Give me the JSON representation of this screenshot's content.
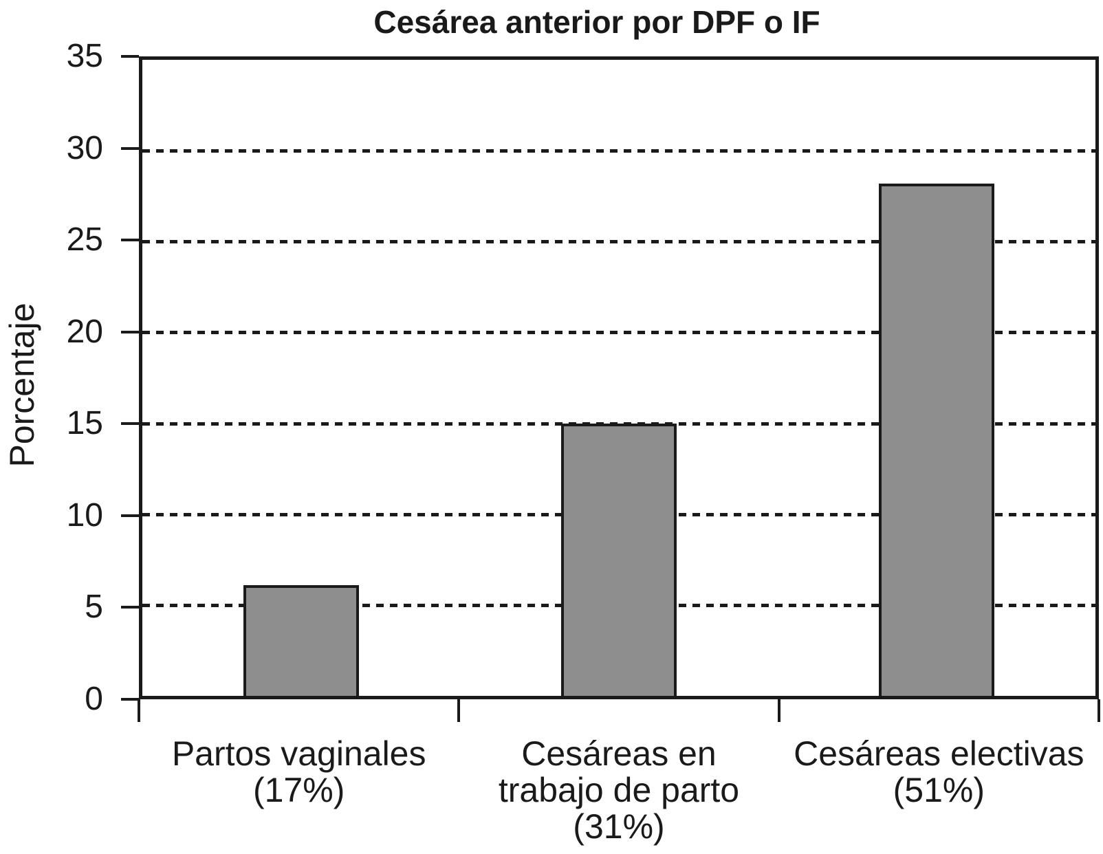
{
  "chart_data": {
    "type": "bar",
    "title": "Cesárea anterior por DPF o IF",
    "ylabel": "Porcentaje",
    "xlabel": "",
    "categories": [
      {
        "label": "Partos vaginales (17%)",
        "lines": [
          "Partos vaginales",
          "(17%)"
        ],
        "value": 6.1
      },
      {
        "label": "Cesáreas en trabajo de parto (31%)",
        "lines": [
          "Cesáreas en",
          "trabajo de parto",
          "(31%)"
        ],
        "value": 15
      },
      {
        "label": "Cesáreas electivas (51%)",
        "lines": [
          "Cesáreas electivas",
          "(51%)"
        ],
        "value": 28.2
      }
    ],
    "ylim": [
      0,
      35
    ],
    "yticks": [
      0,
      5,
      10,
      15,
      20,
      25,
      30,
      35
    ],
    "gridlines_at": [
      5,
      10,
      15,
      20,
      25,
      30
    ],
    "grid_style": "dashed-horizontal",
    "legend_position": "none",
    "colors": {
      "bar_fill": "#8e8e8e",
      "bar_border": "#1a1a1a",
      "axis": "#1a1a1a",
      "grid": "#1a1a1a",
      "text": "#1a1a1a",
      "background": "#ffffff"
    }
  }
}
